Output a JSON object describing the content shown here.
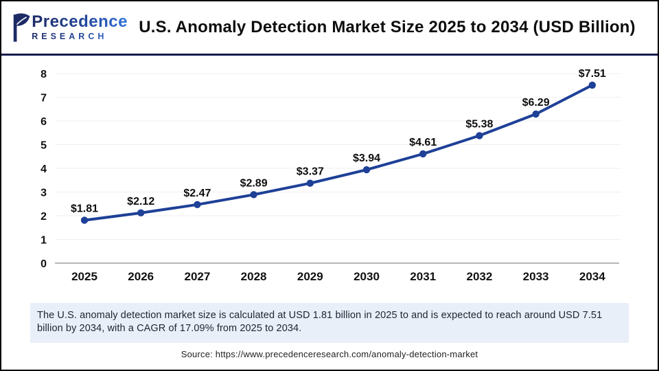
{
  "header": {
    "logo": {
      "name": "Precedence",
      "subtitle": "RESEARCH"
    },
    "title": "U.S. Anomaly Detection Market Size 2025 to 2034 (USD Billion)"
  },
  "chart_data": {
    "type": "line",
    "categories": [
      "2025",
      "2026",
      "2027",
      "2028",
      "2029",
      "2030",
      "2031",
      "2032",
      "2033",
      "2034"
    ],
    "values": [
      1.81,
      2.12,
      2.47,
      2.89,
      3.37,
      3.94,
      4.61,
      5.38,
      6.29,
      7.51
    ],
    "point_labels": [
      "$1.81",
      "$2.12",
      "$2.47",
      "$2.89",
      "$3.37",
      "$3.94",
      "$4.61",
      "$5.38",
      "$6.29",
      "$7.51"
    ],
    "title": "U.S. Anomaly Detection Market Size 2025 to 2034 (USD Billion)",
    "xlabel": "",
    "ylabel": "",
    "ylim": [
      0,
      8
    ],
    "ytick_step": 1,
    "grid": true,
    "legend": "none",
    "line_color": "#1e4097",
    "marker_color": "#1e4097"
  },
  "summary": {
    "text": "The U.S. anomaly detection market size is calculated at USD 1.81 billion in 2025 to and is expected to reach around USD 7.51 billion by 2034, with a CAGR of 17.09% from 2025 to 2034."
  },
  "footer": {
    "source": "Source: https://www.precedenceresearch.com/anomaly-detection-market"
  },
  "colors": {
    "accent_line": "#1e4097",
    "summary_bg": "#e9eff9",
    "divider": "#171b4d",
    "logo_dark": "#1d2a66",
    "logo_light": "#2f72d9"
  }
}
